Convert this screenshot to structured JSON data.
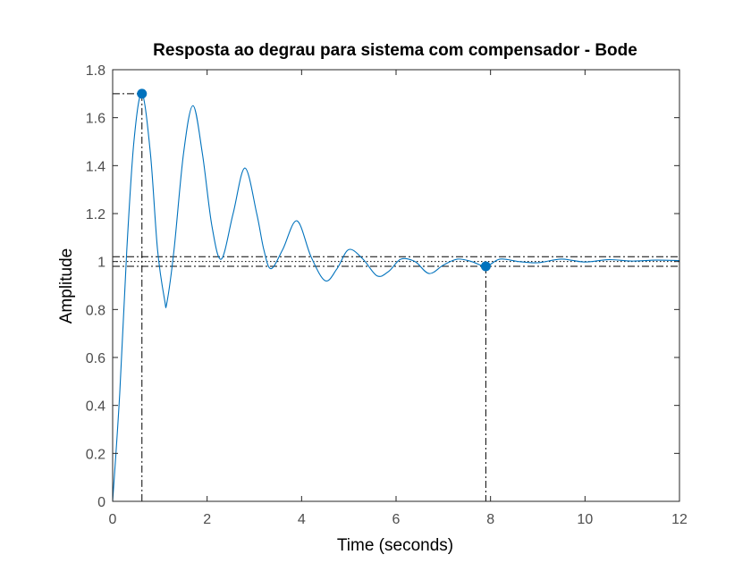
{
  "chart_data": {
    "type": "line",
    "title": "Resposta ao degrau para sistema com compensador - Bode",
    "xlabel": "Time (seconds)",
    "ylabel": "Amplitude",
    "xlim": [
      0,
      12
    ],
    "ylim": [
      0,
      1.8
    ],
    "xticks": [
      0,
      2,
      4,
      6,
      8,
      10,
      12
    ],
    "yticks": [
      0,
      0.2,
      0.4,
      0.6,
      0.8,
      1,
      1.2,
      1.4,
      1.6,
      1.8
    ],
    "xtick_labels": [
      "0",
      "2",
      "4",
      "6",
      "8",
      "10",
      "12"
    ],
    "ytick_labels": [
      "0",
      "0.2",
      "0.4",
      "0.6",
      "0.8",
      "1",
      "1.2",
      "1.4",
      "1.6",
      "1.8"
    ],
    "grid": false,
    "series": [
      {
        "x": [
          0,
          0.15,
          0.3,
          0.45,
          0.62,
          0.8,
          0.95,
          1.1,
          1.15,
          1.3,
          1.5,
          1.7,
          1.9,
          2.1,
          2.3,
          2.55,
          2.8,
          3.05,
          3.2,
          3.35,
          3.6,
          3.9,
          4.2,
          4.5,
          4.75,
          5.0,
          5.3,
          5.6,
          5.85,
          6.1,
          6.4,
          6.7,
          7.0,
          7.3,
          7.6,
          7.9,
          8.2,
          8.6,
          9.0,
          9.5,
          10.0,
          10.5,
          11.0,
          11.5,
          12.0
        ],
        "y": [
          0,
          0.45,
          1.05,
          1.5,
          1.7,
          1.45,
          1.05,
          0.84,
          0.83,
          1.05,
          1.45,
          1.65,
          1.45,
          1.15,
          1.01,
          1.2,
          1.39,
          1.2,
          1.05,
          0.97,
          1.05,
          1.17,
          1.02,
          0.92,
          0.97,
          1.05,
          1.01,
          0.94,
          0.96,
          1.01,
          1.0,
          0.95,
          0.985,
          1.01,
          1.0,
          0.98,
          1.01,
          1.0,
          0.995,
          1.01,
          0.998,
          1.008,
          1.002,
          1.006,
          1.004
        ],
        "color": "#0072bd"
      }
    ],
    "annotations": {
      "steady_state": 1,
      "settling_band": [
        0.98,
        1.02
      ],
      "peak": {
        "x": 0.62,
        "y": 1.7
      },
      "settling_point": {
        "x": 7.9,
        "y": 0.98
      },
      "marker_color": "#0072bd",
      "guide_color": "#000000"
    }
  }
}
